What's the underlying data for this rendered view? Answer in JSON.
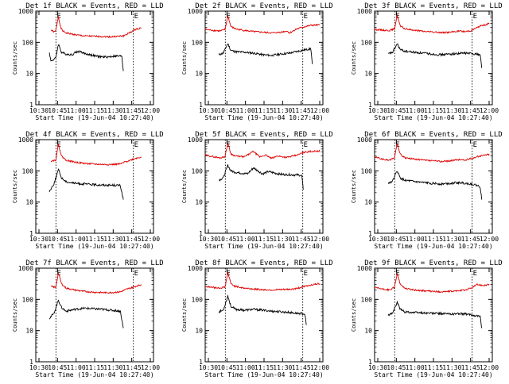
{
  "charts": [
    {
      "title": "Det 1f BLACK = Events, RED = LLD",
      "events": [
        [
          10.45,
          48
        ],
        [
          10.5,
          25
        ],
        [
          10.66,
          31
        ],
        [
          10.75,
          89
        ],
        [
          10.85,
          48
        ],
        [
          11.0,
          42
        ],
        [
          11.2,
          40
        ],
        [
          11.3,
          47
        ],
        [
          11.45,
          52
        ],
        [
          11.6,
          44
        ],
        [
          11.8,
          40
        ],
        [
          12.0,
          36
        ],
        [
          12.2,
          34
        ],
        [
          12.4,
          34
        ],
        [
          12.6,
          36
        ],
        [
          12.7,
          36
        ],
        [
          12.85,
          36
        ],
        [
          12.9,
          12
        ]
      ],
      "lld": [
        [
          10.5,
          250
        ],
        [
          10.6,
          215
        ],
        [
          10.66,
          230
        ],
        [
          10.75,
          690
        ],
        [
          10.82,
          300
        ],
        [
          10.9,
          230
        ],
        [
          11.0,
          200
        ],
        [
          11.3,
          175
        ],
        [
          11.6,
          160
        ],
        [
          12.0,
          155
        ],
        [
          12.5,
          150
        ],
        [
          12.9,
          160
        ],
        [
          13.1,
          200
        ],
        [
          13.3,
          260
        ],
        [
          13.5,
          290
        ]
      ]
    },
    {
      "title": "Det 2f BLACK = Events, RED = LLD",
      "events": [
        [
          10.45,
          40
        ],
        [
          10.6,
          45
        ],
        [
          10.75,
          92
        ],
        [
          10.85,
          55
        ],
        [
          11.0,
          50
        ],
        [
          11.3,
          48
        ],
        [
          11.6,
          45
        ],
        [
          11.9,
          40
        ],
        [
          12.2,
          38
        ],
        [
          12.5,
          42
        ],
        [
          12.8,
          45
        ],
        [
          13.0,
          50
        ],
        [
          13.2,
          55
        ],
        [
          13.4,
          60
        ],
        [
          13.5,
          62
        ],
        [
          13.55,
          20
        ]
      ],
      "lld": [
        [
          10.0,
          260
        ],
        [
          10.3,
          240
        ],
        [
          10.5,
          230
        ],
        [
          10.66,
          260
        ],
        [
          10.75,
          720
        ],
        [
          10.85,
          320
        ],
        [
          11.0,
          270
        ],
        [
          11.3,
          240
        ],
        [
          11.6,
          220
        ],
        [
          11.9,
          210
        ],
        [
          12.2,
          200
        ],
        [
          12.5,
          210
        ],
        [
          12.7,
          230
        ],
        [
          12.8,
          200
        ],
        [
          13.0,
          260
        ],
        [
          13.2,
          300
        ],
        [
          13.5,
          350
        ],
        [
          13.8,
          360
        ]
      ]
    },
    {
      "title": "Det 3f BLACK = Events, RED = LLD",
      "events": [
        [
          10.45,
          42
        ],
        [
          10.6,
          48
        ],
        [
          10.75,
          90
        ],
        [
          10.85,
          58
        ],
        [
          11.0,
          52
        ],
        [
          11.3,
          48
        ],
        [
          11.6,
          45
        ],
        [
          11.9,
          42
        ],
        [
          12.2,
          40
        ],
        [
          12.5,
          42
        ],
        [
          12.8,
          44
        ],
        [
          13.0,
          45
        ],
        [
          13.2,
          44
        ],
        [
          13.4,
          42
        ],
        [
          13.5,
          40
        ],
        [
          13.55,
          15
        ]
      ],
      "lld": [
        [
          10.0,
          260
        ],
        [
          10.3,
          245
        ],
        [
          10.5,
          240
        ],
        [
          10.66,
          270
        ],
        [
          10.75,
          740
        ],
        [
          10.85,
          330
        ],
        [
          11.0,
          270
        ],
        [
          11.3,
          245
        ],
        [
          11.6,
          225
        ],
        [
          11.9,
          215
        ],
        [
          12.2,
          205
        ],
        [
          12.5,
          210
        ],
        [
          12.8,
          230
        ],
        [
          13.0,
          220
        ],
        [
          13.2,
          240
        ],
        [
          13.5,
          330
        ],
        [
          13.8,
          400
        ]
      ]
    },
    {
      "title": "Det 4f BLACK = Events, RED = LLD",
      "events": [
        [
          10.45,
          22
        ],
        [
          10.6,
          38
        ],
        [
          10.75,
          110
        ],
        [
          10.85,
          60
        ],
        [
          11.0,
          45
        ],
        [
          11.3,
          40
        ],
        [
          11.6,
          38
        ],
        [
          11.9,
          36
        ],
        [
          12.2,
          35
        ],
        [
          12.5,
          35
        ],
        [
          12.8,
          34
        ],
        [
          12.9,
          12
        ]
      ],
      "lld": [
        [
          10.5,
          210
        ],
        [
          10.66,
          220
        ],
        [
          10.75,
          720
        ],
        [
          10.85,
          300
        ],
        [
          11.0,
          220
        ],
        [
          11.3,
          190
        ],
        [
          11.6,
          175
        ],
        [
          11.9,
          165
        ],
        [
          12.2,
          160
        ],
        [
          12.5,
          160
        ],
        [
          12.8,
          165
        ],
        [
          13.0,
          200
        ],
        [
          13.3,
          250
        ],
        [
          13.5,
          280
        ]
      ]
    },
    {
      "title": "Det 5f BLACK = Events, RED = LLD",
      "events": [
        [
          10.45,
          50
        ],
        [
          10.6,
          60
        ],
        [
          10.75,
          150
        ],
        [
          10.85,
          100
        ],
        [
          11.0,
          90
        ],
        [
          11.2,
          85
        ],
        [
          11.4,
          80
        ],
        [
          11.6,
          125
        ],
        [
          11.75,
          100
        ],
        [
          11.9,
          80
        ],
        [
          12.1,
          95
        ],
        [
          12.3,
          85
        ],
        [
          12.5,
          78
        ],
        [
          12.8,
          75
        ],
        [
          13.1,
          74
        ],
        [
          13.2,
          70
        ],
        [
          13.25,
          25
        ]
      ],
      "lld": [
        [
          10.0,
          320
        ],
        [
          10.3,
          280
        ],
        [
          10.5,
          260
        ],
        [
          10.66,
          290
        ],
        [
          10.75,
          800
        ],
        [
          10.85,
          350
        ],
        [
          11.0,
          300
        ],
        [
          11.3,
          280
        ],
        [
          11.6,
          420
        ],
        [
          11.8,
          280
        ],
        [
          12.0,
          320
        ],
        [
          12.2,
          250
        ],
        [
          12.4,
          300
        ],
        [
          12.7,
          270
        ],
        [
          13.0,
          310
        ],
        [
          13.3,
          400
        ],
        [
          13.5,
          420
        ],
        [
          13.8,
          430
        ]
      ]
    },
    {
      "title": "Det 6f BLACK = Events, RED = LLD",
      "events": [
        [
          10.45,
          40
        ],
        [
          10.6,
          48
        ],
        [
          10.75,
          100
        ],
        [
          10.85,
          58
        ],
        [
          11.0,
          50
        ],
        [
          11.3,
          45
        ],
        [
          11.6,
          42
        ],
        [
          11.9,
          40
        ],
        [
          12.2,
          38
        ],
        [
          12.5,
          40
        ],
        [
          12.8,
          42
        ],
        [
          13.0,
          40
        ],
        [
          13.2,
          38
        ],
        [
          13.4,
          34
        ],
        [
          13.5,
          30
        ],
        [
          13.55,
          12
        ]
      ],
      "lld": [
        [
          10.0,
          280
        ],
        [
          10.3,
          230
        ],
        [
          10.5,
          220
        ],
        [
          10.66,
          260
        ],
        [
          10.75,
          760
        ],
        [
          10.85,
          340
        ],
        [
          11.0,
          260
        ],
        [
          11.3,
          240
        ],
        [
          11.6,
          220
        ],
        [
          11.9,
          210
        ],
        [
          12.2,
          200
        ],
        [
          12.5,
          210
        ],
        [
          12.8,
          230
        ],
        [
          13.0,
          220
        ],
        [
          13.2,
          250
        ],
        [
          13.5,
          300
        ],
        [
          13.8,
          340
        ]
      ]
    },
    {
      "title": "Det 7f BLACK = Events, RED = LLD",
      "events": [
        [
          10.45,
          25
        ],
        [
          10.6,
          35
        ],
        [
          10.75,
          95
        ],
        [
          10.85,
          55
        ],
        [
          11.0,
          42
        ],
        [
          11.3,
          48
        ],
        [
          11.6,
          52
        ],
        [
          11.9,
          50
        ],
        [
          12.2,
          48
        ],
        [
          12.5,
          45
        ],
        [
          12.8,
          42
        ],
        [
          12.9,
          12
        ]
      ],
      "lld": [
        [
          10.5,
          260
        ],
        [
          10.66,
          240
        ],
        [
          10.75,
          700
        ],
        [
          10.85,
          320
        ],
        [
          11.0,
          230
        ],
        [
          11.3,
          200
        ],
        [
          11.6,
          180
        ],
        [
          11.9,
          170
        ],
        [
          12.2,
          165
        ],
        [
          12.5,
          165
        ],
        [
          12.8,
          175
        ],
        [
          13.0,
          210
        ],
        [
          13.3,
          260
        ],
        [
          13.5,
          300
        ]
      ]
    },
    {
      "title": "Det 8f BLACK = Events, RED = LLD",
      "events": [
        [
          10.45,
          40
        ],
        [
          10.6,
          45
        ],
        [
          10.75,
          130
        ],
        [
          10.85,
          60
        ],
        [
          11.0,
          48
        ],
        [
          11.3,
          45
        ],
        [
          11.6,
          48
        ],
        [
          11.9,
          45
        ],
        [
          12.2,
          42
        ],
        [
          12.5,
          40
        ],
        [
          12.8,
          38
        ],
        [
          13.0,
          36
        ],
        [
          13.2,
          35
        ],
        [
          13.3,
          34
        ],
        [
          13.35,
          15
        ]
      ],
      "lld": [
        [
          10.0,
          260
        ],
        [
          10.3,
          240
        ],
        [
          10.5,
          230
        ],
        [
          10.66,
          250
        ],
        [
          10.75,
          740
        ],
        [
          10.85,
          320
        ],
        [
          11.0,
          260
        ],
        [
          11.3,
          230
        ],
        [
          11.6,
          215
        ],
        [
          11.9,
          205
        ],
        [
          12.2,
          200
        ],
        [
          12.5,
          205
        ],
        [
          12.8,
          210
        ],
        [
          13.0,
          220
        ],
        [
          13.3,
          260
        ],
        [
          13.5,
          290
        ],
        [
          13.8,
          320
        ]
      ]
    },
    {
      "title": "Det 9f BLACK = Events, RED = LLD",
      "events": [
        [
          10.45,
          30
        ],
        [
          10.6,
          38
        ],
        [
          10.75,
          80
        ],
        [
          10.85,
          48
        ],
        [
          11.0,
          40
        ],
        [
          11.3,
          38
        ],
        [
          11.6,
          37
        ],
        [
          11.9,
          36
        ],
        [
          12.2,
          35
        ],
        [
          12.5,
          34
        ],
        [
          12.8,
          35
        ],
        [
          13.0,
          34
        ],
        [
          13.2,
          32
        ],
        [
          13.4,
          30
        ],
        [
          13.5,
          28
        ],
        [
          13.55,
          12
        ]
      ],
      "lld": [
        [
          10.0,
          240
        ],
        [
          10.3,
          210
        ],
        [
          10.5,
          200
        ],
        [
          10.66,
          240
        ],
        [
          10.75,
          700
        ],
        [
          10.85,
          300
        ],
        [
          11.0,
          230
        ],
        [
          11.3,
          200
        ],
        [
          11.6,
          190
        ],
        [
          11.9,
          180
        ],
        [
          12.2,
          175
        ],
        [
          12.5,
          180
        ],
        [
          12.8,
          190
        ],
        [
          13.0,
          200
        ],
        [
          13.2,
          230
        ],
        [
          13.4,
          300
        ],
        [
          13.6,
          280
        ],
        [
          13.8,
          300
        ]
      ]
    }
  ],
  "xlabel": "Start Time (19-Jun-04 10:27:40)",
  "ylabel": "Counts/sec",
  "xticks": [
    "10:30",
    "10:45",
    "11:00",
    "11:15",
    "11:30",
    "11:45",
    "12:00"
  ],
  "yticks": [
    "1",
    "10",
    "100",
    "1000"
  ],
  "marker": "E",
  "colors": {
    "events": "#000000",
    "lld": "#dd0000"
  },
  "chart_data": [
    {
      "type": "line",
      "title": "Det 1f BLACK = Events, RED = LLD",
      "xlabel": "Start Time (19-Jun-04 10:27:40)",
      "ylabel": "Counts/sec",
      "ylim": [
        1,
        1000
      ],
      "yscale": "log",
      "series": [
        {
          "name": "Events"
        },
        {
          "name": "LLD"
        }
      ]
    },
    {
      "type": "line",
      "title": "Det 2f BLACK = Events, RED = LLD",
      "xlabel": "Start Time (19-Jun-04 10:27:40)",
      "ylabel": "Counts/sec",
      "ylim": [
        1,
        1000
      ],
      "yscale": "log",
      "series": [
        {
          "name": "Events"
        },
        {
          "name": "LLD"
        }
      ]
    },
    {
      "type": "line",
      "title": "Det 3f BLACK = Events, RED = LLD",
      "xlabel": "Start Time (19-Jun-04 10:27:40)",
      "ylabel": "Counts/sec",
      "ylim": [
        1,
        1000
      ],
      "yscale": "log",
      "series": [
        {
          "name": "Events"
        },
        {
          "name": "LLD"
        }
      ]
    },
    {
      "type": "line",
      "title": "Det 4f BLACK = Events, RED = LLD",
      "xlabel": "Start Time (19-Jun-04 10:27:40)",
      "ylabel": "Counts/sec",
      "ylim": [
        1,
        1000
      ],
      "yscale": "log",
      "series": [
        {
          "name": "Events"
        },
        {
          "name": "LLD"
        }
      ]
    },
    {
      "type": "line",
      "title": "Det 5f BLACK = Events, RED = LLD",
      "xlabel": "Start Time (19-Jun-04 10:27:40)",
      "ylabel": "Counts/sec",
      "ylim": [
        1,
        1000
      ],
      "yscale": "log",
      "series": [
        {
          "name": "Events"
        },
        {
          "name": "LLD"
        }
      ]
    },
    {
      "type": "line",
      "title": "Det 6f BLACK = Events, RED = LLD",
      "xlabel": "Start Time (19-Jun-04 10:27:40)",
      "ylabel": "Counts/sec",
      "ylim": [
        1,
        1000
      ],
      "yscale": "log",
      "series": [
        {
          "name": "Events"
        },
        {
          "name": "LLD"
        }
      ]
    },
    {
      "type": "line",
      "title": "Det 7f BLACK = Events, RED = LLD",
      "xlabel": "Start Time (19-Jun-04 10:27:40)",
      "ylabel": "Counts/sec",
      "ylim": [
        1,
        1000
      ],
      "yscale": "log",
      "series": [
        {
          "name": "Events"
        },
        {
          "name": "LLD"
        }
      ]
    },
    {
      "type": "line",
      "title": "Det 8f BLACK = Events, RED = LLD",
      "xlabel": "Start Time (19-Jun-04 10:27:40)",
      "ylabel": "Counts/sec",
      "ylim": [
        1,
        1000
      ],
      "yscale": "log",
      "series": [
        {
          "name": "Events"
        },
        {
          "name": "LLD"
        }
      ]
    },
    {
      "type": "line",
      "title": "Det 9f BLACK = Events, RED = LLD",
      "xlabel": "Start Time (19-Jun-04 10:27:40)",
      "ylabel": "Counts/sec",
      "ylim": [
        1,
        1000
      ],
      "yscale": "log",
      "series": [
        {
          "name": "Events"
        },
        {
          "name": "LLD"
        }
      ]
    }
  ]
}
